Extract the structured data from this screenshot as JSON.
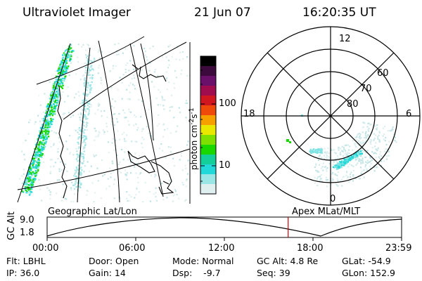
{
  "header": {
    "title": "Ultraviolet Imager",
    "date": "21 Jun 07",
    "time": "16:20:35 UT"
  },
  "colorbar": {
    "label": "photon cm-2s-1",
    "label_main": "photon cm",
    "label_sup1": "-2",
    "label_s": "s",
    "label_sup2": "-1",
    "ticks": [
      "100",
      "10"
    ],
    "colors": [
      "#000000",
      "#3c0a3c",
      "#6a0f6a",
      "#a00d4e",
      "#d0161e",
      "#f04a0a",
      "#f6a000",
      "#e8e800",
      "#7ee000",
      "#18d800",
      "#14cf9a",
      "#22d8d8",
      "#9ae6e6",
      "#dfefef"
    ]
  },
  "polar": {
    "mlt_labels": [
      "12",
      "18",
      "6",
      "0"
    ],
    "lat_labels": [
      "60",
      "70",
      "80"
    ]
  },
  "timeline": {
    "left_title": "Geographic Lat/Lon",
    "right_title": "Apex MLat/MLT",
    "ylabel": "GC Alt",
    "y_ticks": [
      "9.0",
      "1.8"
    ],
    "x_ticks": [
      "00:00",
      "06:00",
      "12:00",
      "18:00",
      "23:59"
    ],
    "current_time_fraction": 0.68
  },
  "info": {
    "flt": "Flt: LBHL",
    "ip": "IP: 36.0",
    "door": "Door: Open",
    "gain": "Gain: 14",
    "mode": "Mode: Normal",
    "dsp": "Dsp:    -9.7",
    "gcalt": "GC Alt: 4.8 Re",
    "seq": "Seq: 39",
    "glat": "GLat: -54.9",
    "glon": "GLon: 152.9"
  },
  "accent_colors": {
    "aurora_green": "#18d800",
    "aurora_cyan": "#22d8d8",
    "time_marker": "#cc0000"
  }
}
